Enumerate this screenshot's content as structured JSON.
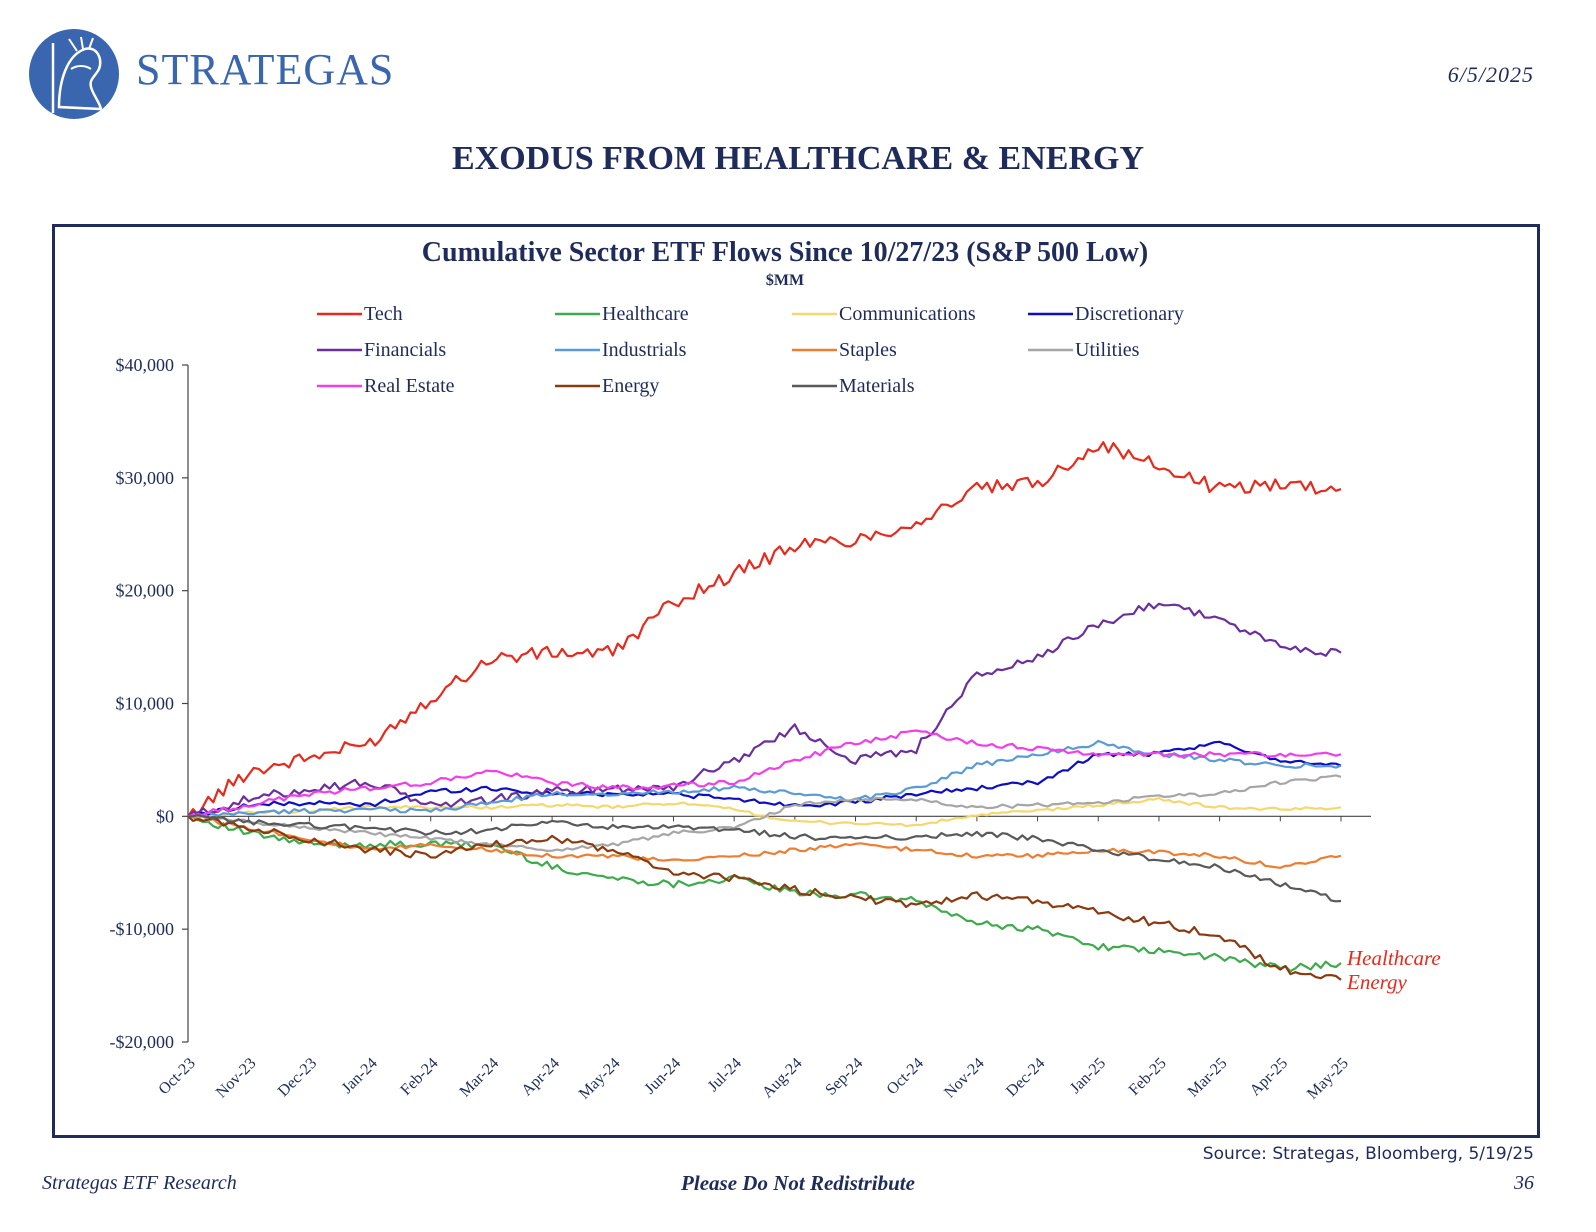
{
  "header": {
    "brand": "STRATEGAS",
    "date": "6/5/2025",
    "title": "EXODUS FROM HEALTHCARE & ENERGY"
  },
  "footer": {
    "source": "Source: Strategas, Bloomberg, 5/19/25",
    "left": "Strategas ETF Research",
    "center": "Please Do Not Redistribute",
    "page": "36"
  },
  "chart_data": {
    "type": "line",
    "title": "Cumulative Sector ETF Flows Since 10/27/23 (S&P 500 Low)",
    "subtitle": "$MM",
    "xlabel": "",
    "ylabel": "",
    "ylim": [
      -20000,
      40000
    ],
    "yticks": [
      -20000,
      -10000,
      0,
      10000,
      20000,
      30000,
      40000
    ],
    "ytick_labels": [
      "-$20,000",
      "-$10,000",
      "$0",
      "$10,000",
      "$20,000",
      "$30,000",
      "$40,000"
    ],
    "grid": false,
    "legend_position": "top",
    "x": [
      "Oct-23",
      "Nov-23",
      "Dec-23",
      "Jan-24",
      "Feb-24",
      "Mar-24",
      "Apr-24",
      "May-24",
      "Jun-24",
      "Jul-24",
      "Aug-24",
      "Sep-24",
      "Oct-24",
      "Nov-24",
      "Dec-24",
      "Jan-25",
      "Feb-25",
      "Mar-25",
      "Apr-25",
      "May-25"
    ],
    "series": [
      {
        "name": "Tech",
        "color": "#e8291c",
        "values": [
          0,
          4000,
          5200,
          6500,
          10500,
          14000,
          14500,
          14500,
          19000,
          21500,
          24000,
          24500,
          26000,
          29000,
          29500,
          33000,
          31000,
          29000,
          29500,
          29000
        ]
      },
      {
        "name": "Healthcare",
        "color": "#3daa4b",
        "values": [
          0,
          -1500,
          -2500,
          -2500,
          -2500,
          -2500,
          -4500,
          -5500,
          -6000,
          -5500,
          -6800,
          -7000,
          -7500,
          -9500,
          -10000,
          -11500,
          -12000,
          -12500,
          -13500,
          -13000
        ]
      },
      {
        "name": "Communications",
        "color": "#f5d76e",
        "values": [
          0,
          300,
          500,
          800,
          800,
          800,
          1000,
          800,
          1200,
          600,
          -500,
          -600,
          -800,
          100,
          500,
          1000,
          1500,
          800,
          600,
          800
        ]
      },
      {
        "name": "Discretionary",
        "color": "#0d0ec2",
        "values": [
          0,
          1000,
          1200,
          1000,
          2200,
          2500,
          2000,
          2000,
          2000,
          1500,
          1000,
          1200,
          2000,
          2500,
          3000,
          5500,
          5500,
          6500,
          5000,
          4500
        ]
      },
      {
        "name": "Financials",
        "color": "#6a2f9e",
        "values": [
          0,
          1500,
          2500,
          3000,
          1000,
          1500,
          2200,
          2500,
          2600,
          5000,
          7800,
          5000,
          6000,
          12500,
          14000,
          17000,
          19000,
          17500,
          15000,
          14500
        ]
      },
      {
        "name": "Industrials",
        "color": "#5b9bd5",
        "values": [
          0,
          300,
          500,
          600,
          500,
          1200,
          2000,
          2000,
          2200,
          2500,
          2000,
          1500,
          2500,
          4500,
          5500,
          6500,
          5500,
          5000,
          4500,
          4500
        ]
      },
      {
        "name": "Staples",
        "color": "#ed7d31",
        "values": [
          0,
          -1000,
          -2000,
          -3000,
          -2500,
          -3000,
          -3500,
          -3500,
          -4000,
          -3500,
          -3000,
          -2500,
          -3000,
          -3500,
          -3500,
          -3000,
          -3200,
          -3500,
          -4500,
          -3500
        ]
      },
      {
        "name": "Utilities",
        "color": "#a6a6a6",
        "values": [
          0,
          -500,
          -1000,
          -1500,
          -2000,
          -2500,
          -3000,
          -2500,
          -1500,
          -1000,
          1000,
          1500,
          1500,
          800,
          1000,
          1200,
          1800,
          2000,
          3000,
          3500
        ]
      },
      {
        "name": "Real Estate",
        "color": "#f03ee8",
        "values": [
          0,
          1000,
          2000,
          2500,
          3000,
          4000,
          3000,
          2500,
          2700,
          3000,
          5000,
          6500,
          7500,
          6500,
          6000,
          5500,
          5500,
          5500,
          5500,
          5500
        ]
      },
      {
        "name": "Energy",
        "color": "#8b3a0f",
        "values": [
          0,
          -1000,
          -2000,
          -3000,
          -3500,
          -2500,
          -2000,
          -3000,
          -5000,
          -5500,
          -6500,
          -7200,
          -8000,
          -7000,
          -7500,
          -8500,
          -9500,
          -10500,
          -13500,
          -14500
        ]
      },
      {
        "name": "Materials",
        "color": "#595959",
        "values": [
          0,
          -500,
          -800,
          -1000,
          -1500,
          -1200,
          -500,
          -1000,
          -1000,
          -1200,
          -1800,
          -2000,
          -1800,
          -1500,
          -2000,
          -3000,
          -3800,
          -4500,
          -6000,
          -7500
        ]
      }
    ],
    "annotations": [
      {
        "text": "Healthcare",
        "color": "#e8291c"
      },
      {
        "text": "Energy",
        "color": "#e8291c"
      }
    ]
  }
}
